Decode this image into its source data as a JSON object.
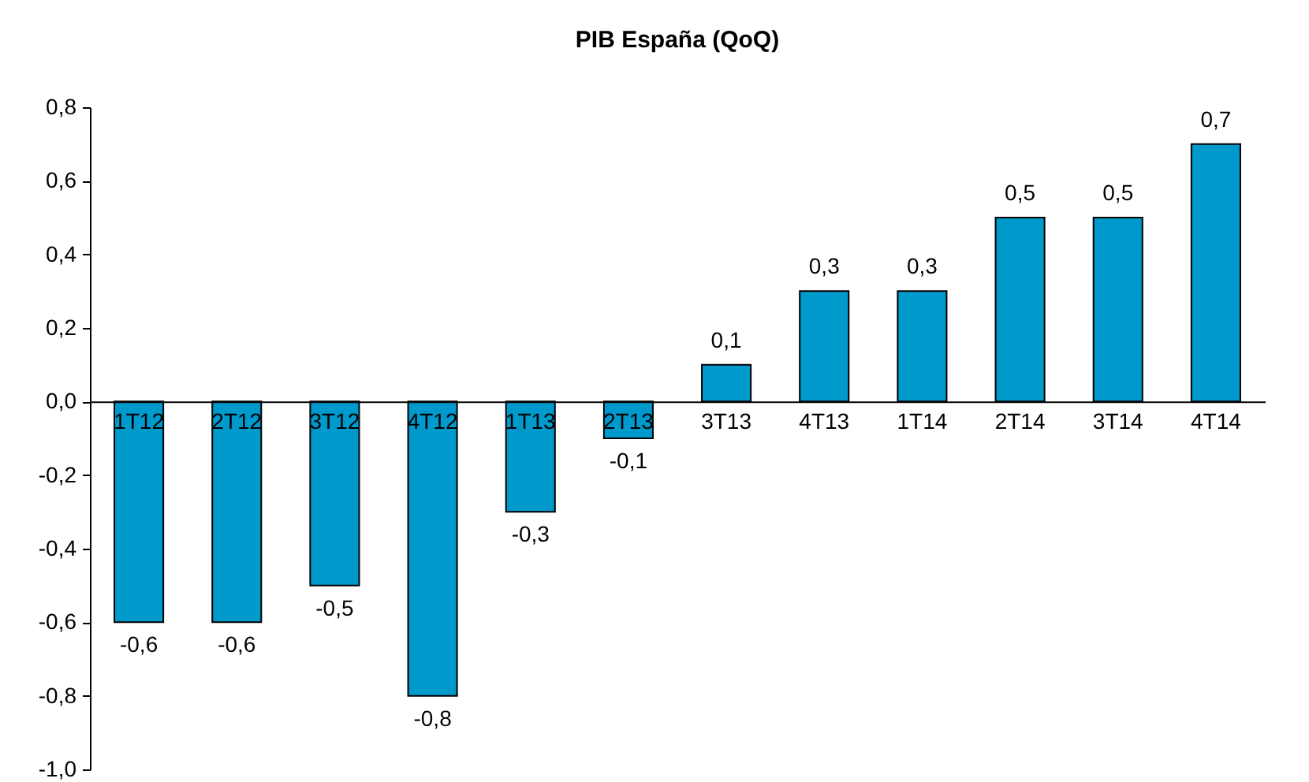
{
  "chart_data": {
    "type": "bar",
    "title": "PIB España (QoQ)",
    "categories": [
      "1T12",
      "2T12",
      "3T12",
      "4T12",
      "1T13",
      "2T13",
      "3T13",
      "4T13",
      "1T14",
      "2T14",
      "3T14",
      "4T14"
    ],
    "values": [
      -0.6,
      -0.6,
      -0.5,
      -0.8,
      -0.3,
      -0.1,
      0.1,
      0.3,
      0.3,
      0.5,
      0.5,
      0.7
    ],
    "value_labels": [
      "-0,6",
      "-0,6",
      "-0,5",
      "-0,8",
      "-0,3",
      "-0,1",
      "0,1",
      "0,3",
      "0,3",
      "0,5",
      "0,5",
      "0,7"
    ],
    "color": "#0099cc",
    "ylim": [
      -1.0,
      0.8
    ],
    "yticks": [
      {
        "value": -1.0,
        "label": "-1,0"
      },
      {
        "value": -0.8,
        "label": "-0,8"
      },
      {
        "value": -0.6,
        "label": "-0,6"
      },
      {
        "value": -0.4,
        "label": "-0,4"
      },
      {
        "value": -0.2,
        "label": "-0,2"
      },
      {
        "value": 0,
        "label": "0,0"
      },
      {
        "value": 0.2,
        "label": "0,2"
      },
      {
        "value": 0.4,
        "label": "0,4"
      },
      {
        "value": 0.6,
        "label": "0,6"
      },
      {
        "value": 0.8,
        "label": "0,8"
      }
    ],
    "grid": false
  }
}
